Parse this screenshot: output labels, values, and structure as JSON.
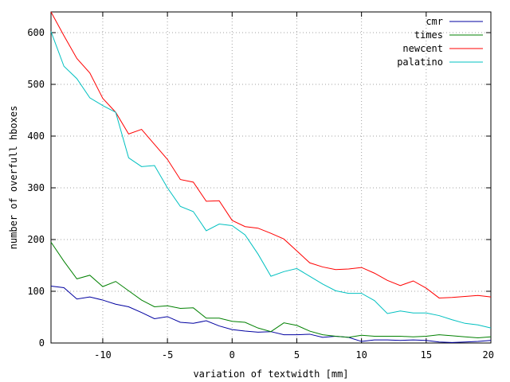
{
  "chart_data": {
    "type": "line",
    "title": "",
    "xlabel": "variation of textwidth [mm]",
    "ylabel": "number of overfull hboxes",
    "xlim": [
      -14,
      20
    ],
    "ylim": [
      0,
      640
    ],
    "xticks": [
      -10,
      -5,
      0,
      5,
      10,
      15,
      20
    ],
    "xtick_labels": [
      "-10",
      "-5",
      "0",
      "5",
      "10",
      "15",
      "20"
    ],
    "yticks": [
      0,
      100,
      200,
      300,
      400,
      500,
      600
    ],
    "ytick_labels": [
      "0",
      "100",
      "200",
      "300",
      "400",
      "500",
      "600"
    ],
    "grid": true,
    "legend_position": "top-right",
    "x": [
      -14,
      -13,
      -12,
      -11,
      -10,
      -9,
      -8,
      -7,
      -6,
      -5,
      -4,
      -3,
      -2,
      -1,
      0,
      1,
      2,
      3,
      4,
      5,
      6,
      7,
      8,
      9,
      10,
      11,
      12,
      13,
      14,
      15,
      16,
      17,
      18,
      19,
      20
    ],
    "series": [
      {
        "name": "cmr",
        "color": "#0000a0",
        "values": [
          110,
          107,
          85,
          89,
          83,
          75,
          70,
          59,
          47,
          51,
          40,
          38,
          43,
          33,
          26,
          23,
          21,
          22,
          16,
          16,
          17,
          11,
          13,
          11,
          3,
          6,
          6,
          5,
          6,
          5,
          2,
          1,
          2,
          3,
          5
        ]
      },
      {
        "name": "times",
        "color": "#008000",
        "values": [
          195,
          158,
          124,
          131,
          109,
          119,
          101,
          83,
          70,
          72,
          67,
          68,
          48,
          48,
          42,
          40,
          29,
          22,
          39,
          34,
          23,
          16,
          13,
          11,
          15,
          13,
          13,
          13,
          12,
          13,
          16,
          14,
          12,
          10,
          12
        ]
      },
      {
        "name": "newcent",
        "color": "#ff0000",
        "values": [
          640,
          594,
          550,
          522,
          473,
          446,
          404,
          413,
          384,
          355,
          316,
          311,
          274,
          275,
          237,
          225,
          222,
          212,
          201,
          178,
          155,
          147,
          142,
          143,
          146,
          135,
          121,
          111,
          120,
          106,
          87,
          88,
          90,
          92,
          89
        ]
      },
      {
        "name": "palatino",
        "color": "#00c0c0",
        "values": [
          602,
          535,
          511,
          474,
          459,
          446,
          358,
          341,
          343,
          300,
          264,
          254,
          217,
          230,
          227,
          209,
          172,
          129,
          138,
          144,
          129,
          114,
          101,
          96,
          96,
          82,
          57,
          62,
          58,
          58,
          53,
          45,
          38,
          35,
          29
        ]
      }
    ]
  }
}
